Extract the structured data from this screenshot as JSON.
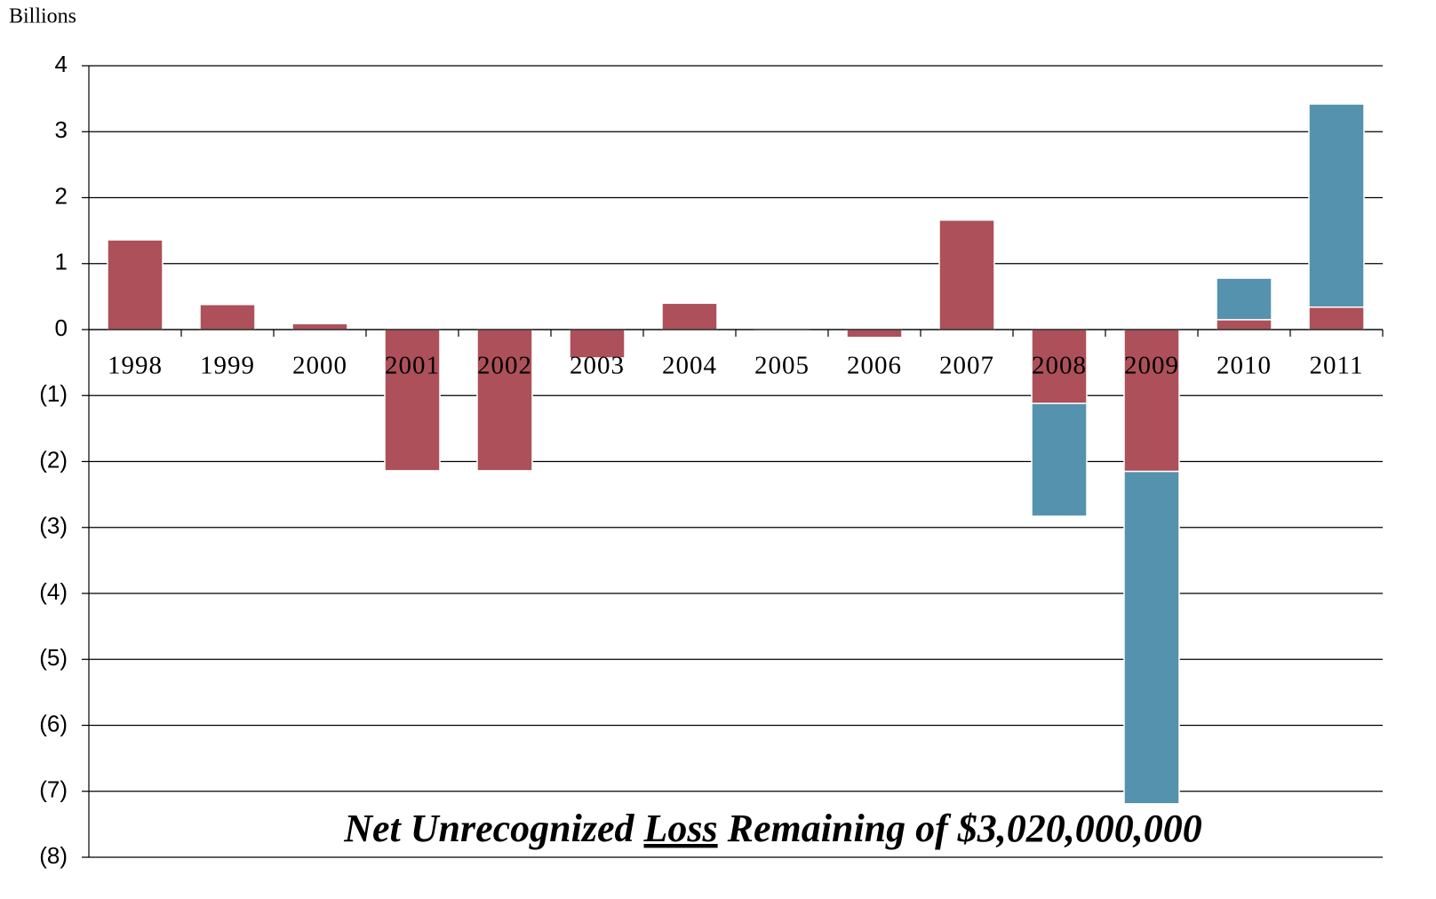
{
  "chart_data": {
    "type": "bar",
    "stacked": true,
    "y_label": "Billions",
    "annotation": [
      "Net Unrecognized",
      "Loss",
      "Remaining of $3,020,000,000"
    ],
    "categories": [
      "1998",
      "1999",
      "2000",
      "2001",
      "2002",
      "2003",
      "2004",
      "2005",
      "2006",
      "2007",
      "2008",
      "2009",
      "2010",
      "2011"
    ],
    "series": [
      {
        "color": "#ad505a",
        "values": [
          1.36,
          0.38,
          0.09,
          -2.14,
          -2.14,
          -0.43,
          0.4,
          -0.02,
          -0.12,
          1.66,
          -1.12,
          -2.15,
          0.15,
          0.34
        ]
      },
      {
        "color": "#5592ad",
        "values": [
          null,
          null,
          null,
          null,
          null,
          null,
          null,
          null,
          null,
          null,
          -1.71,
          -5.04,
          0.63,
          3.08
        ]
      }
    ],
    "ylim": [
      -8,
      4
    ],
    "yticks": [
      4,
      3,
      2,
      1,
      0,
      {
        "value": -1,
        "label": "(1)"
      },
      {
        "value": -2,
        "label": "(2)"
      },
      {
        "value": -3,
        "label": "(3)"
      },
      {
        "value": -4,
        "label": "(4)"
      },
      {
        "value": -5,
        "label": "(5)"
      },
      {
        "value": -6,
        "label": "(6)"
      },
      {
        "value": -7,
        "label": "(7)"
      },
      {
        "value": -8,
        "label": "(8)"
      }
    ],
    "grid": true
  }
}
